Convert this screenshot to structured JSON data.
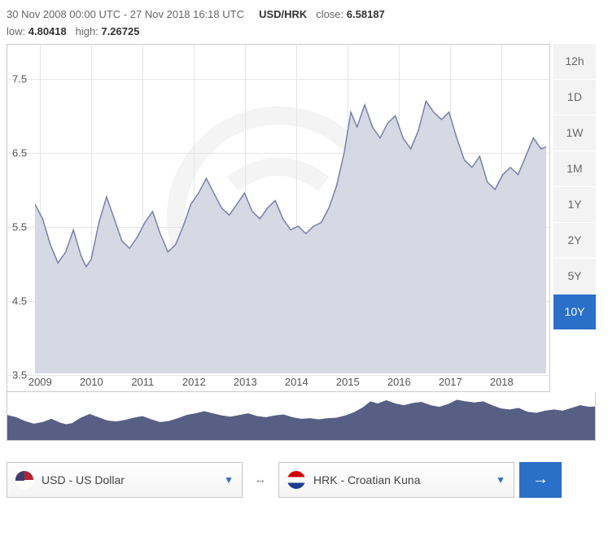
{
  "header": {
    "range_start": "30 Nov 2008 00:00 UTC",
    "range_end": "27 Nov 2018 16:18 UTC",
    "pair": "USD/HRK",
    "close_label": "close:",
    "close_value": "6.58187",
    "low_label": "low:",
    "low_value": "4.80418",
    "high_label": "high:",
    "high_value": "7.26725"
  },
  "chart": {
    "type": "line-area",
    "ylim": [
      3.5,
      7.9
    ],
    "ytick_labels": [
      "3.5",
      "4.5",
      "5.5",
      "6.5",
      "7.5"
    ],
    "ytick_values": [
      3.5,
      4.5,
      5.5,
      6.5,
      7.5
    ],
    "xtick_labels": [
      "2009",
      "2010",
      "2011",
      "2012",
      "2013",
      "2014",
      "2015",
      "2016",
      "2017",
      "2018"
    ],
    "grid_color": "#e5e5e5",
    "line_color": "#7781a8",
    "fill_color": "#d6d8e4",
    "background_color": "#ffffff",
    "label_fontsize": 13,
    "label_color": "#555555",
    "series": [
      {
        "x": 0.0,
        "y": 5.8
      },
      {
        "x": 0.015,
        "y": 5.6
      },
      {
        "x": 0.03,
        "y": 5.25
      },
      {
        "x": 0.045,
        "y": 5.0
      },
      {
        "x": 0.06,
        "y": 5.15
      },
      {
        "x": 0.075,
        "y": 5.45
      },
      {
        "x": 0.09,
        "y": 5.1
      },
      {
        "x": 0.1,
        "y": 4.95
      },
      {
        "x": 0.11,
        "y": 5.05
      },
      {
        "x": 0.125,
        "y": 5.55
      },
      {
        "x": 0.14,
        "y": 5.9
      },
      {
        "x": 0.155,
        "y": 5.6
      },
      {
        "x": 0.17,
        "y": 5.3
      },
      {
        "x": 0.185,
        "y": 5.2
      },
      {
        "x": 0.2,
        "y": 5.35
      },
      {
        "x": 0.215,
        "y": 5.55
      },
      {
        "x": 0.23,
        "y": 5.7
      },
      {
        "x": 0.245,
        "y": 5.4
      },
      {
        "x": 0.26,
        "y": 5.15
      },
      {
        "x": 0.275,
        "y": 5.25
      },
      {
        "x": 0.29,
        "y": 5.5
      },
      {
        "x": 0.305,
        "y": 5.8
      },
      {
        "x": 0.32,
        "y": 5.95
      },
      {
        "x": 0.335,
        "y": 6.15
      },
      {
        "x": 0.35,
        "y": 5.95
      },
      {
        "x": 0.365,
        "y": 5.75
      },
      {
        "x": 0.38,
        "y": 5.65
      },
      {
        "x": 0.395,
        "y": 5.8
      },
      {
        "x": 0.41,
        "y": 5.95
      },
      {
        "x": 0.425,
        "y": 5.7
      },
      {
        "x": 0.44,
        "y": 5.6
      },
      {
        "x": 0.455,
        "y": 5.75
      },
      {
        "x": 0.47,
        "y": 5.85
      },
      {
        "x": 0.485,
        "y": 5.6
      },
      {
        "x": 0.5,
        "y": 5.45
      },
      {
        "x": 0.515,
        "y": 5.5
      },
      {
        "x": 0.53,
        "y": 5.4
      },
      {
        "x": 0.545,
        "y": 5.5
      },
      {
        "x": 0.56,
        "y": 5.55
      },
      {
        "x": 0.575,
        "y": 5.75
      },
      {
        "x": 0.59,
        "y": 6.05
      },
      {
        "x": 0.605,
        "y": 6.5
      },
      {
        "x": 0.618,
        "y": 7.05
      },
      {
        "x": 0.63,
        "y": 6.85
      },
      {
        "x": 0.645,
        "y": 7.15
      },
      {
        "x": 0.66,
        "y": 6.85
      },
      {
        "x": 0.675,
        "y": 6.7
      },
      {
        "x": 0.69,
        "y": 6.9
      },
      {
        "x": 0.705,
        "y": 7.0
      },
      {
        "x": 0.72,
        "y": 6.7
      },
      {
        "x": 0.735,
        "y": 6.55
      },
      {
        "x": 0.75,
        "y": 6.8
      },
      {
        "x": 0.765,
        "y": 7.2
      },
      {
        "x": 0.78,
        "y": 7.05
      },
      {
        "x": 0.795,
        "y": 6.95
      },
      {
        "x": 0.81,
        "y": 7.05
      },
      {
        "x": 0.825,
        "y": 6.7
      },
      {
        "x": 0.84,
        "y": 6.4
      },
      {
        "x": 0.855,
        "y": 6.3
      },
      {
        "x": 0.87,
        "y": 6.45
      },
      {
        "x": 0.885,
        "y": 6.1
      },
      {
        "x": 0.9,
        "y": 6.0
      },
      {
        "x": 0.915,
        "y": 6.2
      },
      {
        "x": 0.93,
        "y": 6.3
      },
      {
        "x": 0.945,
        "y": 6.2
      },
      {
        "x": 0.96,
        "y": 6.45
      },
      {
        "x": 0.975,
        "y": 6.7
      },
      {
        "x": 0.99,
        "y": 6.55
      },
      {
        "x": 1.0,
        "y": 6.58
      }
    ]
  },
  "mini_chart": {
    "fill_color": "#585f84",
    "background_color": "#ffffff"
  },
  "ranges": {
    "items": [
      {
        "label": "12h",
        "active": false
      },
      {
        "label": "1D",
        "active": false
      },
      {
        "label": "1W",
        "active": false
      },
      {
        "label": "1M",
        "active": false
      },
      {
        "label": "1Y",
        "active": false
      },
      {
        "label": "2Y",
        "active": false
      },
      {
        "label": "5Y",
        "active": false
      },
      {
        "label": "10Y",
        "active": true
      }
    ]
  },
  "converter": {
    "from": {
      "code": "USD",
      "name": "US Dollar",
      "display": "USD - US Dollar"
    },
    "to": {
      "code": "HRK",
      "name": "Croatian Kuna",
      "display": "HRK - Croatian Kuna"
    },
    "swap_symbol": "↔",
    "go_symbol": "→",
    "caret": "▼"
  },
  "colors": {
    "accent": "#2a70c8",
    "border": "#c5c5c5",
    "range_bg": "#f3f3f3",
    "text": "#555555"
  }
}
